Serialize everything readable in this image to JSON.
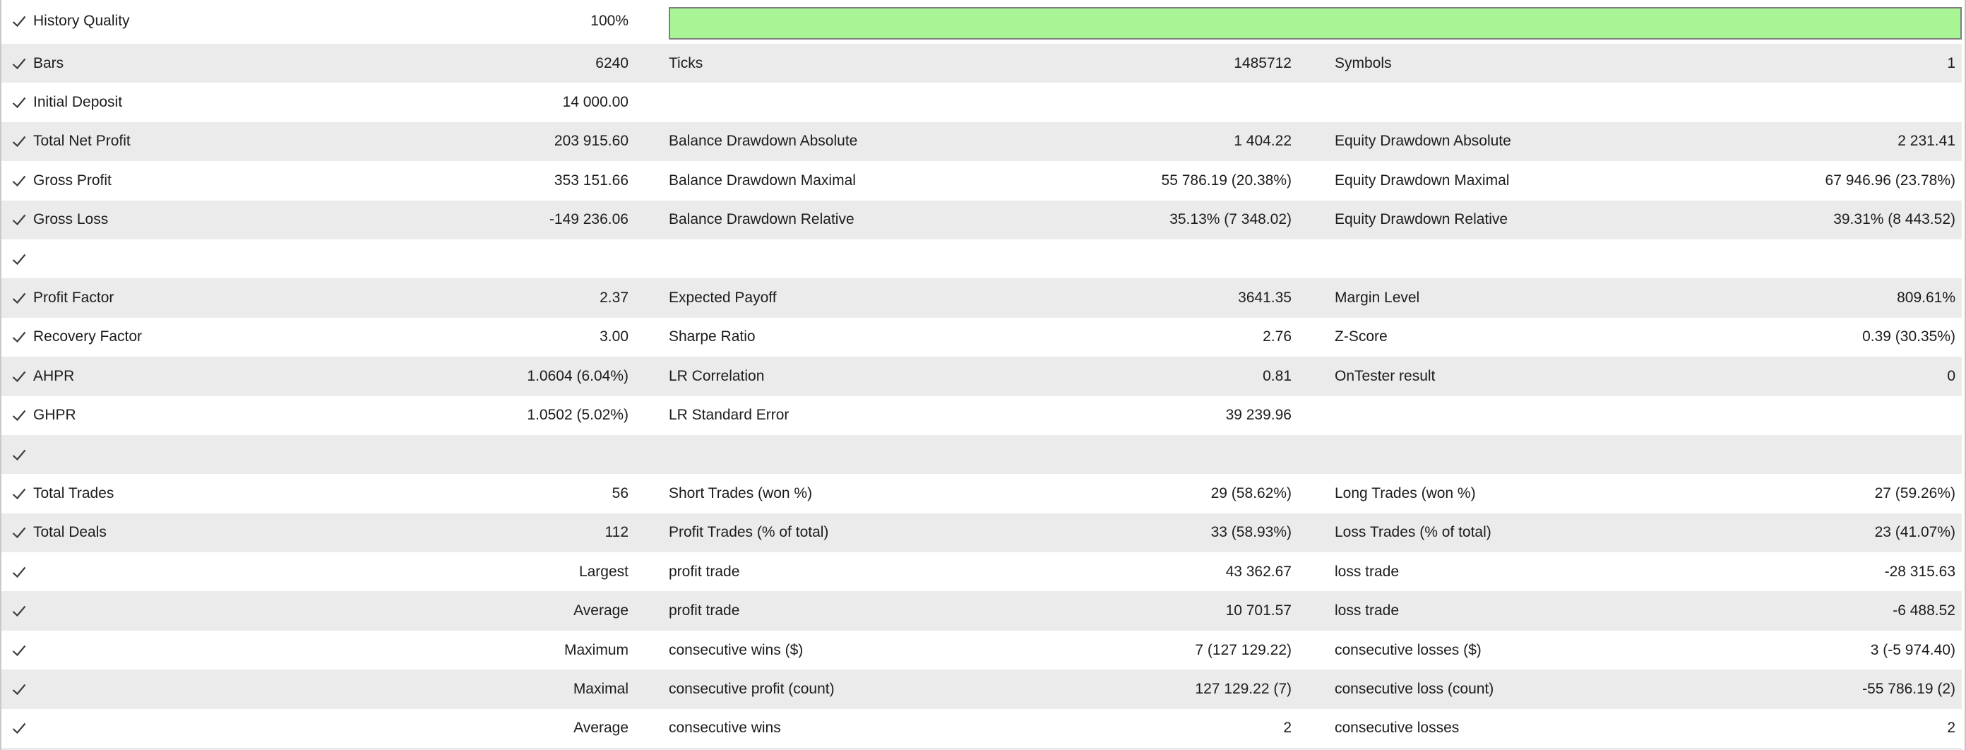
{
  "colors": {
    "text": "#1c1c1c",
    "row_alt": "#ebebeb",
    "check": "#3d3d3d",
    "progress_green": "#a9f596",
    "progress_border": "#7e7e7e"
  },
  "rows": [
    {
      "check": true,
      "c1": {
        "label": "History Quality",
        "value": "100%"
      },
      "progress": {
        "percent": 100
      }
    },
    {
      "check": true,
      "c1": {
        "label": "Bars",
        "value": "6240"
      },
      "c2": {
        "label": "Ticks",
        "value": "1485712"
      },
      "c3": {
        "label": "Symbols",
        "value": "1"
      }
    },
    {
      "check": true,
      "c1": {
        "label": "Initial Deposit",
        "value": "14 000.00"
      }
    },
    {
      "check": true,
      "c1": {
        "label": "Total Net Profit",
        "value": "203 915.60"
      },
      "c2": {
        "label": "Balance Drawdown Absolute",
        "value": "1 404.22"
      },
      "c3": {
        "label": "Equity Drawdown Absolute",
        "value": "2 231.41"
      }
    },
    {
      "check": true,
      "c1": {
        "label": "Gross Profit",
        "value": "353 151.66"
      },
      "c2": {
        "label": "Balance Drawdown Maximal",
        "value": "55 786.19 (20.38%)"
      },
      "c3": {
        "label": "Equity Drawdown Maximal",
        "value": "67 946.96 (23.78%)"
      }
    },
    {
      "check": true,
      "c1": {
        "label": "Gross Loss",
        "value": "-149 236.06"
      },
      "c2": {
        "label": "Balance Drawdown Relative",
        "value": "35.13% (7 348.02)"
      },
      "c3": {
        "label": "Equity Drawdown Relative",
        "value": "39.31% (8 443.52)"
      }
    },
    {
      "check": true
    },
    {
      "check": true,
      "c1": {
        "label": "Profit Factor",
        "value": "2.37"
      },
      "c2": {
        "label": "Expected Payoff",
        "value": "3641.35"
      },
      "c3": {
        "label": "Margin Level",
        "value": "809.61%"
      }
    },
    {
      "check": true,
      "c1": {
        "label": "Recovery Factor",
        "value": "3.00"
      },
      "c2": {
        "label": "Sharpe Ratio",
        "value": "2.76"
      },
      "c3": {
        "label": "Z-Score",
        "value": "0.39 (30.35%)"
      }
    },
    {
      "check": true,
      "c1": {
        "label": "AHPR",
        "value": "1.0604 (6.04%)"
      },
      "c2": {
        "label": "LR Correlation",
        "value": "0.81"
      },
      "c3": {
        "label": "OnTester result",
        "value": "0"
      }
    },
    {
      "check": true,
      "c1": {
        "label": "GHPR",
        "value": "1.0502 (5.02%)"
      },
      "c2": {
        "label": "LR Standard Error",
        "value": "39 239.96"
      }
    },
    {
      "check": true
    },
    {
      "check": true,
      "c1": {
        "label": "Total Trades",
        "value": "56"
      },
      "c2": {
        "label": "Short Trades (won %)",
        "value": "29 (58.62%)"
      },
      "c3": {
        "label": "Long Trades (won %)",
        "value": "27 (59.26%)"
      }
    },
    {
      "check": true,
      "c1": {
        "label": "Total Deals",
        "value": "112"
      },
      "c2": {
        "label": "Profit Trades (% of total)",
        "value": "33 (58.93%)"
      },
      "c3": {
        "label": "Loss Trades (% of total)",
        "value": "23 (41.07%)"
      }
    },
    {
      "check": true,
      "c1": {
        "label": "",
        "value": "Largest"
      },
      "c2": {
        "label": "profit trade",
        "value": "43 362.67"
      },
      "c3": {
        "label": "loss trade",
        "value": "-28 315.63"
      }
    },
    {
      "check": true,
      "c1": {
        "label": "",
        "value": "Average"
      },
      "c2": {
        "label": "profit trade",
        "value": "10 701.57"
      },
      "c3": {
        "label": "loss trade",
        "value": "-6 488.52"
      }
    },
    {
      "check": true,
      "c1": {
        "label": "",
        "value": "Maximum"
      },
      "c2": {
        "label": "consecutive wins ($)",
        "value": "7 (127 129.22)"
      },
      "c3": {
        "label": "consecutive losses ($)",
        "value": "3 (-5 974.40)"
      }
    },
    {
      "check": true,
      "c1": {
        "label": "",
        "value": "Maximal"
      },
      "c2": {
        "label": "consecutive profit (count)",
        "value": "127 129.22 (7)"
      },
      "c3": {
        "label": "consecutive loss (count)",
        "value": "-55 786.19 (2)"
      }
    },
    {
      "check": true,
      "c1": {
        "label": "",
        "value": "Average"
      },
      "c2": {
        "label": "consecutive wins",
        "value": "2"
      },
      "c3": {
        "label": "consecutive losses",
        "value": "2"
      }
    }
  ]
}
